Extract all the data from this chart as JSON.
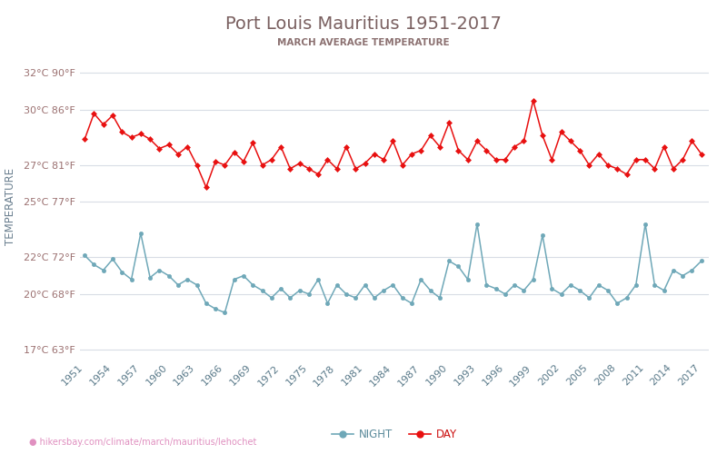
{
  "title": "Port Louis Mauritius 1951-2017",
  "subtitle": "MARCH AVERAGE TEMPERATURE",
  "ylabel": "TEMPERATURE",
  "url_text": "hikersbay.com/climate/march/mauritius/lehochet",
  "title_color": "#7a6060",
  "subtitle_color": "#8b7070",
  "ylabel_color": "#6b8090",
  "ax_label_color": "#9b7070",
  "grid_color": "#d8dde5",
  "bg_color": "#ffffff",
  "day_color": "#e81010",
  "night_color": "#6fa8b8",
  "night_label_color": "#5a8a9a",
  "day_label_color": "#cc1111",
  "years": [
    1951,
    1952,
    1953,
    1954,
    1955,
    1956,
    1957,
    1958,
    1959,
    1960,
    1961,
    1962,
    1963,
    1964,
    1965,
    1966,
    1967,
    1968,
    1969,
    1970,
    1971,
    1972,
    1973,
    1974,
    1975,
    1976,
    1977,
    1978,
    1979,
    1980,
    1981,
    1982,
    1983,
    1984,
    1985,
    1986,
    1987,
    1988,
    1989,
    1990,
    1991,
    1992,
    1993,
    1994,
    1995,
    1996,
    1997,
    1998,
    1999,
    2000,
    2001,
    2002,
    2003,
    2004,
    2005,
    2006,
    2007,
    2008,
    2009,
    2010,
    2011,
    2012,
    2013,
    2014,
    2015,
    2016,
    2017
  ],
  "day_temps": [
    28.4,
    29.8,
    29.2,
    29.7,
    28.8,
    28.5,
    28.7,
    28.4,
    27.9,
    28.1,
    27.6,
    28.0,
    27.0,
    25.8,
    27.2,
    27.0,
    27.7,
    27.2,
    28.2,
    27.0,
    27.3,
    28.0,
    26.8,
    27.1,
    26.8,
    26.5,
    27.3,
    26.8,
    28.0,
    26.8,
    27.1,
    27.6,
    27.3,
    28.3,
    27.0,
    27.6,
    27.8,
    28.6,
    28.0,
    29.3,
    27.8,
    27.3,
    28.3,
    27.8,
    27.3,
    27.3,
    28.0,
    28.3,
    30.5,
    28.6,
    27.3,
    28.8,
    28.3,
    27.8,
    27.0,
    27.6,
    27.0,
    26.8,
    26.5,
    27.3,
    27.3,
    26.8,
    28.0,
    26.8,
    27.3,
    28.3,
    27.6
  ],
  "night_temps": [
    22.1,
    21.6,
    21.3,
    21.9,
    21.2,
    20.8,
    23.3,
    20.9,
    21.3,
    21.0,
    20.5,
    20.8,
    20.5,
    19.5,
    19.2,
    19.0,
    20.8,
    21.0,
    20.5,
    20.2,
    19.8,
    20.3,
    19.8,
    20.2,
    20.0,
    20.8,
    19.5,
    20.5,
    20.0,
    19.8,
    20.5,
    19.8,
    20.2,
    20.5,
    19.8,
    19.5,
    20.8,
    20.2,
    19.8,
    21.8,
    21.5,
    20.8,
    23.8,
    20.5,
    20.3,
    20.0,
    20.5,
    20.2,
    20.8,
    23.2,
    20.3,
    20.0,
    20.5,
    20.2,
    19.8,
    20.5,
    20.2,
    19.5,
    19.8,
    20.5,
    23.8,
    20.5,
    20.2,
    21.3,
    21.0,
    21.3,
    21.8
  ],
  "yticks_c": [
    17,
    20,
    22,
    25,
    27,
    30,
    32
  ],
  "yticks_f": [
    63,
    68,
    72,
    77,
    81,
    86,
    90
  ],
  "xticks": [
    1951,
    1954,
    1957,
    1960,
    1963,
    1966,
    1969,
    1972,
    1975,
    1978,
    1981,
    1984,
    1987,
    1990,
    1993,
    1996,
    1999,
    2002,
    2005,
    2008,
    2011,
    2014,
    2017
  ],
  "ylim": [
    16.5,
    33.0
  ],
  "xlim": [
    1950.5,
    2017.8
  ]
}
